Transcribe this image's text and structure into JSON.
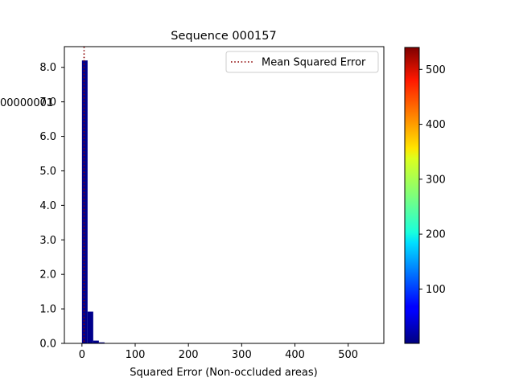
{
  "chart_data": {
    "type": "bar",
    "title": "Sequence 000157",
    "xlabel": "Squared Error (Non-occluded areas)",
    "ylabel": "",
    "y_tick_fragment": "00000001",
    "xlim": [
      -33,
      567
    ],
    "ylim": [
      0,
      8.6
    ],
    "x_ticks": [
      0,
      100,
      200,
      300,
      400,
      500
    ],
    "y_ticks": [
      0.0,
      1.0,
      2.0,
      3.0,
      4.0,
      5.0,
      6.0,
      7.0,
      8.0
    ],
    "bin_width": 10.6,
    "bins": [
      {
        "x0": 0,
        "value": 8.2
      },
      {
        "x0": 10.6,
        "value": 0.92
      },
      {
        "x0": 21.2,
        "value": 0.08
      },
      {
        "x0": 31.8,
        "value": 0.03
      }
    ],
    "mean_line": {
      "x": 4,
      "label": "Mean Squared Error",
      "color": "#8b0000"
    },
    "legend": {
      "position": "top-right",
      "entries": [
        "Mean Squared Error"
      ]
    },
    "bar_color": "#00008b",
    "colorbar": {
      "min": 1,
      "max": 540,
      "ticks": [
        100,
        200,
        300,
        400,
        500
      ],
      "colormap": "jet"
    }
  }
}
